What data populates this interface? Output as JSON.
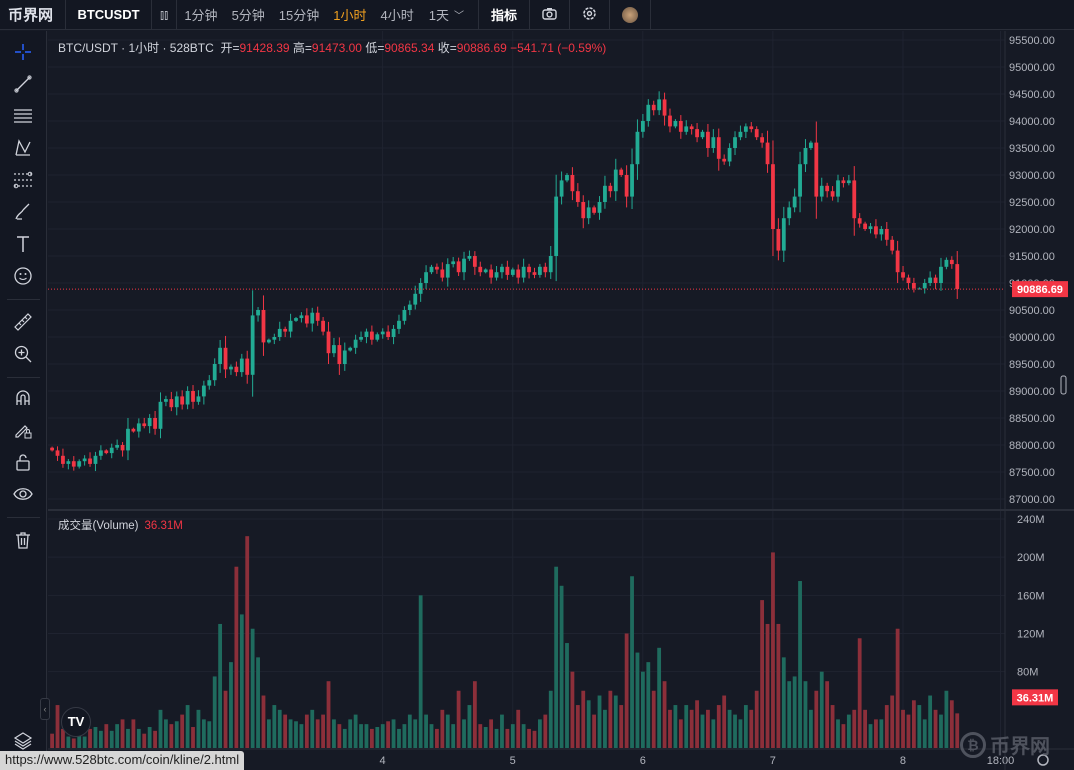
{
  "topbar": {
    "logo": "币界网",
    "symbol": "BTCUSDT",
    "intervals": [
      "1分钟",
      "5分钟",
      "15分钟",
      "1小时",
      "4小时",
      "1天"
    ],
    "active_interval": "1小时",
    "indicators": "指标"
  },
  "legend": {
    "title": "BTC/USDT · 1小时 · 528BTC",
    "open_label": "开=",
    "open": "91428.39",
    "high_label": "高=",
    "high": "91473.00",
    "low_label": "低=",
    "low": "90865.34",
    "close_label": "收=",
    "close": "90886.69",
    "change": "−541.71 (−0.59%)"
  },
  "volume_legend": {
    "label": "成交量(Volume)",
    "value": "36.31M"
  },
  "price_tag": "90886.69",
  "volume_tag": "36.31M",
  "status_url": "https://www.528btc.com/coin/kline/2.html",
  "watermark": "币界网",
  "tv_logo": "TV",
  "colors": {
    "up": "#22ab94",
    "down": "#f23645",
    "bg": "#161a25"
  },
  "chart_data": {
    "type": "candlestick",
    "price_axis": {
      "min": 87000,
      "max": 95500,
      "ticks": [
        "95500.00",
        "95000.00",
        "94500.00",
        "94000.00",
        "93500.00",
        "93000.00",
        "92500.00",
        "92000.00",
        "91500.00",
        "91000.00",
        "90500.00",
        "90000.00",
        "89500.00",
        "89000.00",
        "88500.00",
        "88000.00",
        "87500.00",
        "87000.00"
      ]
    },
    "volume_axis": {
      "max": 240,
      "unit": "M",
      "ticks": [
        "240M",
        "200M",
        "160M",
        "120M",
        "80M"
      ]
    },
    "x_ticks": [
      "4",
      "5",
      "6",
      "7",
      "8",
      "18:00"
    ],
    "x_tick_index": [
      61,
      85,
      109,
      133,
      157,
      175
    ],
    "first_open": 87950,
    "closes": [
      87900,
      87800,
      87650,
      87700,
      87600,
      87700,
      87750,
      87650,
      87800,
      87900,
      87850,
      87950,
      88000,
      87900,
      88300,
      88250,
      88400,
      88350,
      88500,
      88300,
      88800,
      88850,
      88700,
      88900,
      88750,
      89000,
      88800,
      88900,
      89100,
      89200,
      89500,
      89800,
      89400,
      89450,
      89350,
      89600,
      89300,
      90400,
      90500,
      89900,
      89950,
      90000,
      90150,
      90100,
      90300,
      90350,
      90400,
      90250,
      90450,
      90300,
      90100,
      89700,
      89850,
      89500,
      89750,
      89800,
      89950,
      90000,
      90100,
      89950,
      90050,
      90100,
      90000,
      90150,
      90300,
      90500,
      90600,
      90800,
      91000,
      91200,
      91300,
      91250,
      91100,
      91350,
      91400,
      91200,
      91450,
      91500,
      91300,
      91200,
      91250,
      91100,
      91200,
      91300,
      91150,
      91250,
      91100,
      91300,
      91200,
      91150,
      91300,
      91200,
      91500,
      92600,
      92900,
      93000,
      92700,
      92500,
      92200,
      92400,
      92300,
      92500,
      92800,
      92700,
      93100,
      93000,
      92600,
      93200,
      93800,
      94000,
      94300,
      94200,
      94400,
      94100,
      93900,
      94000,
      93800,
      93900,
      93850,
      93700,
      93800,
      93500,
      93700,
      93300,
      93250,
      93500,
      93700,
      93800,
      93900,
      93850,
      93700,
      93600,
      93200,
      92000,
      91600,
      92200,
      92400,
      92600,
      93200,
      93500,
      93600,
      92600,
      92800,
      92700,
      92600,
      92900,
      92850,
      92900,
      92200,
      92100,
      92000,
      92050,
      91900,
      92000,
      91800,
      91600,
      91200,
      91100,
      91000,
      90900,
      90900,
      91000,
      91100,
      91000,
      91300,
      91428.39,
      91350,
      90886.69
    ],
    "volumes": [
      15,
      45,
      20,
      12,
      10,
      15,
      12,
      20,
      22,
      18,
      25,
      18,
      25,
      30,
      20,
      30,
      20,
      15,
      22,
      18,
      40,
      30,
      25,
      28,
      35,
      45,
      22,
      40,
      30,
      28,
      75,
      130,
      60,
      90,
      190,
      140,
      222,
      125,
      95,
      55,
      30,
      45,
      40,
      35,
      30,
      28,
      25,
      35,
      40,
      30,
      35,
      70,
      30,
      25,
      20,
      30,
      35,
      25,
      25,
      20,
      22,
      25,
      28,
      30,
      20,
      25,
      35,
      30,
      160,
      35,
      25,
      20,
      40,
      35,
      25,
      60,
      30,
      45,
      70,
      25,
      22,
      30,
      20,
      35,
      20,
      25,
      40,
      25,
      20,
      18,
      30,
      35,
      60,
      190,
      170,
      110,
      80,
      45,
      60,
      50,
      35,
      55,
      40,
      60,
      55,
      45,
      120,
      180,
      100,
      80,
      90,
      60,
      105,
      70,
      40,
      45,
      30,
      45,
      40,
      50,
      35,
      40,
      30,
      45,
      55,
      40,
      35,
      30,
      45,
      40,
      60,
      155,
      130,
      205,
      130,
      95,
      70,
      75,
      175,
      70,
      40,
      60,
      80,
      70,
      45,
      30,
      25,
      35,
      40,
      115,
      40,
      25,
      30,
      30,
      45,
      55,
      125,
      40,
      35,
      50,
      45,
      30,
      55,
      40,
      35,
      60,
      50,
      36.31
    ]
  }
}
